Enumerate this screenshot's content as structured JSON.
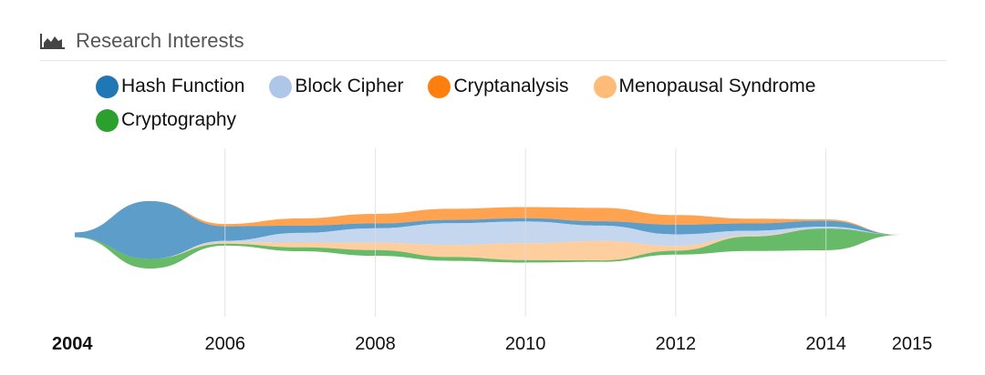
{
  "header": {
    "title": "Research Interests",
    "icon": "area-chart-icon"
  },
  "chart_data": {
    "type": "area",
    "variant": "streamgraph",
    "title": "Research Interests",
    "xlabel": "",
    "ylabel": "",
    "x": [
      2004,
      2005,
      2006,
      2007,
      2008,
      2009,
      2010,
      2011,
      2012,
      2013,
      2014,
      2015
    ],
    "xlim": [
      2004,
      2015
    ],
    "x_tick_labels": [
      "2004",
      "2006",
      "2008",
      "2010",
      "2012",
      "2014",
      "2015"
    ],
    "grid": "vertical",
    "legend_position": "top",
    "series": [
      {
        "name": "Hash Function",
        "color": "#1f77b4",
        "values": [
          1.0,
          12.0,
          3.0,
          1.5,
          1.0,
          0.7,
          0.7,
          0.9,
          2.0,
          1.5,
          1.2,
          0
        ]
      },
      {
        "name": "Block Cipher",
        "color": "#aec7e8",
        "values": [
          0,
          0,
          0.3,
          2.0,
          3.0,
          4.5,
          4.5,
          3.2,
          2.4,
          1.0,
          0.4,
          0
        ]
      },
      {
        "name": "Cryptanalysis",
        "color": "#ff7f0e",
        "values": [
          0,
          0,
          0.5,
          1.5,
          2.0,
          2.3,
          2.3,
          2.8,
          2.0,
          1.0,
          0.3,
          0
        ]
      },
      {
        "name": "Menopausal Syndrome",
        "color": "#ffbb78",
        "values": [
          0,
          0,
          0.3,
          1.0,
          1.5,
          2.5,
          3.5,
          4.0,
          1.0,
          0.2,
          0,
          0
        ]
      },
      {
        "name": "Cryptography",
        "color": "#2ca02c",
        "values": [
          0,
          2.0,
          0.4,
          0.8,
          1.2,
          0.8,
          0.5,
          0.3,
          0.8,
          3.0,
          4.5,
          0
        ]
      }
    ],
    "stack_order": [
      "Cryptanalysis",
      "Hash Function",
      "Block Cipher",
      "Menopausal Syndrome",
      "Cryptography"
    ]
  }
}
